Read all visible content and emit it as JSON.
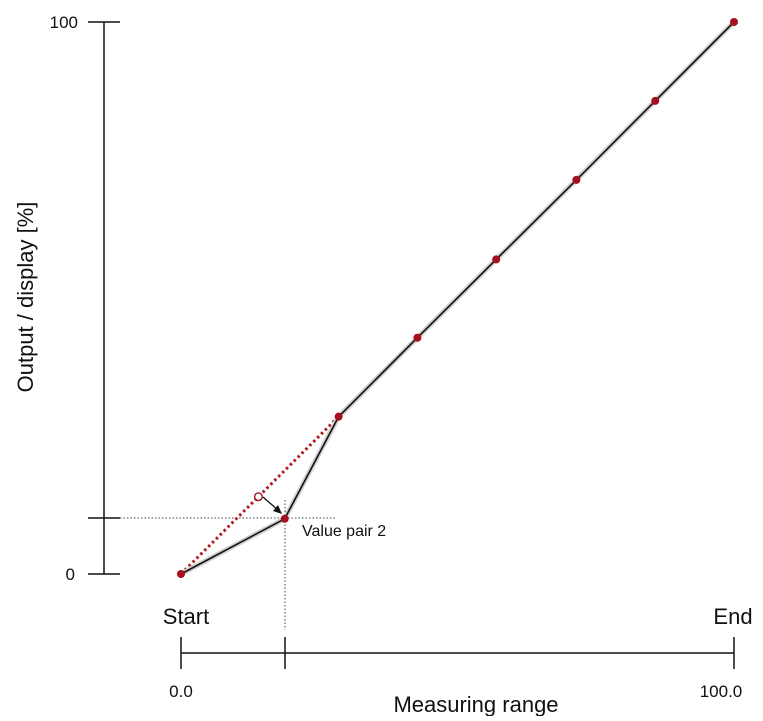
{
  "y_axis": {
    "title": "Output / display [%]",
    "tick_top": "100",
    "tick_bottom": "0"
  },
  "x_axis": {
    "title": "Measuring range",
    "start_label": "Start",
    "end_label": "End",
    "tick_left": "0.0",
    "tick_right": "100.0"
  },
  "annotation": {
    "value_pair_label": "Value pair 2"
  },
  "colors": {
    "point": "#a50f1f",
    "line": "#111111",
    "dotted_line": "#b0171f"
  },
  "chart_data": {
    "type": "line",
    "xlim": [
      0,
      100
    ],
    "ylim": [
      0,
      100
    ],
    "series": [
      {
        "values_x": [
          0,
          18.75,
          28.5,
          42.75,
          57,
          71.5,
          85.75,
          100
        ],
        "values_y": [
          0,
          10,
          28.5,
          42.8,
          57,
          71.4,
          85.7,
          100
        ]
      }
    ],
    "reference_line": {
      "x": [
        0,
        28.5
      ],
      "y": [
        0,
        28.5
      ],
      "style": "dotted"
    },
    "original_point": {
      "x": 14,
      "y": 14
    }
  }
}
